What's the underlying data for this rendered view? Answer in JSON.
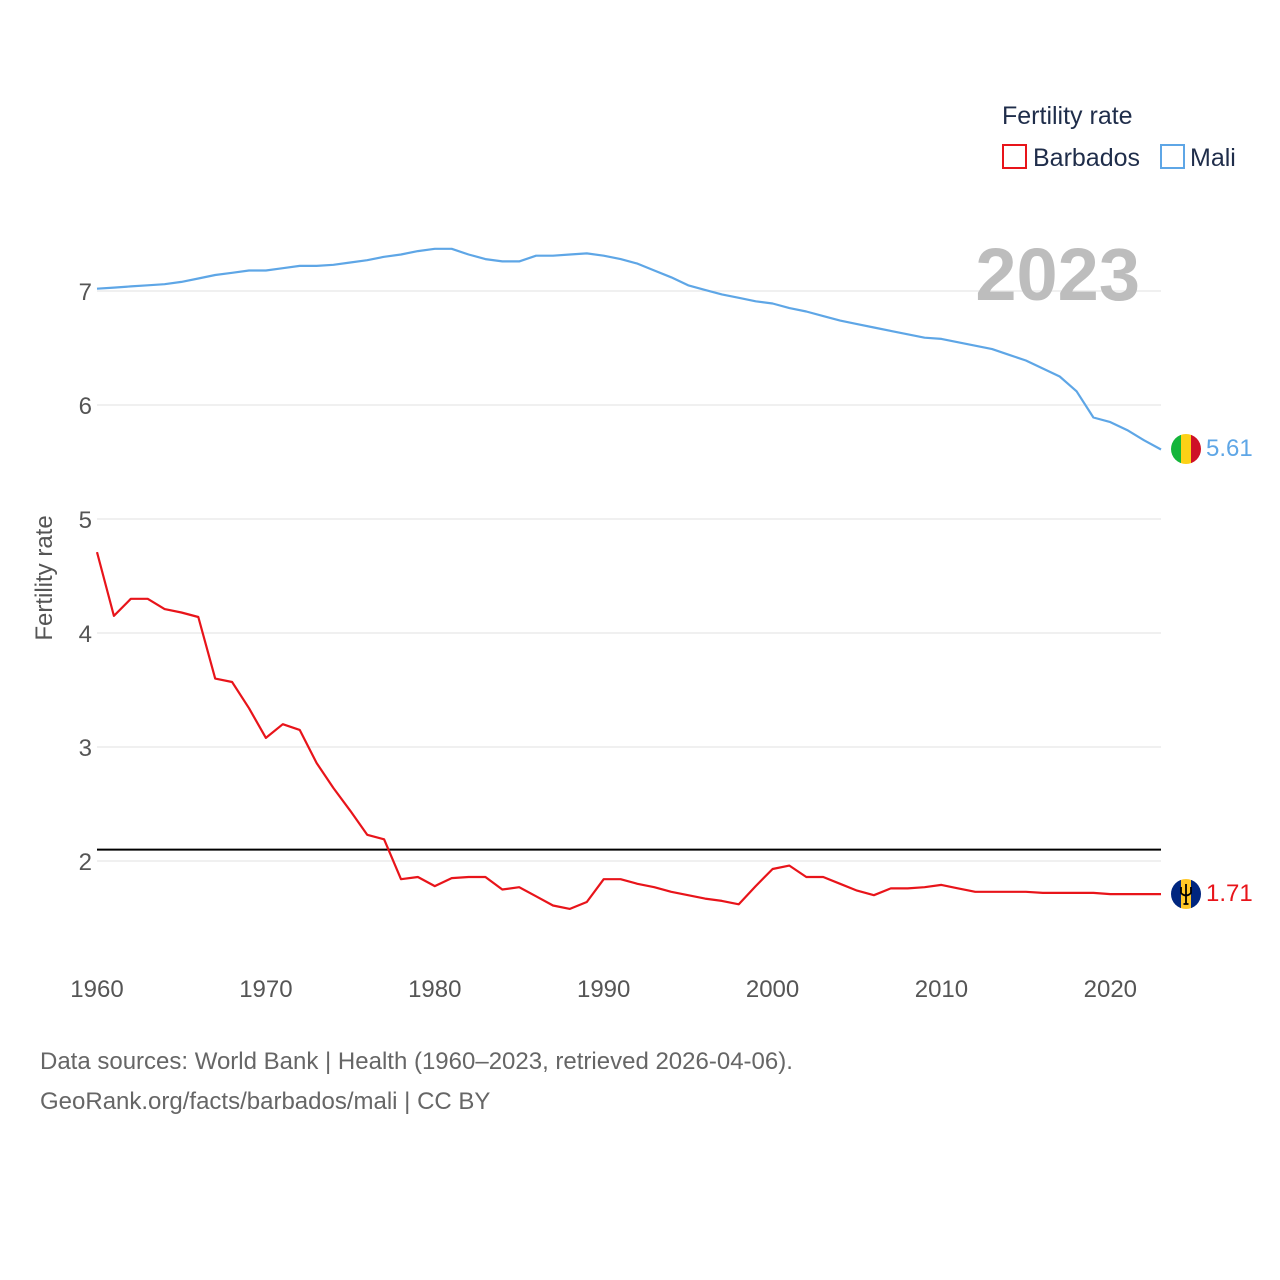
{
  "chart_data": {
    "type": "line",
    "title": "Fertility rate",
    "ylabel": "Fertility rate",
    "xlabel": "",
    "year_label": "2023",
    "xlim": [
      1960,
      2023
    ],
    "ylim": [
      1.2,
      7.6
    ],
    "x_ticks": [
      "1960",
      "1970",
      "1980",
      "1990",
      "2000",
      "2010",
      "2020"
    ],
    "y_ticks": [
      "2",
      "3",
      "4",
      "5",
      "6",
      "7"
    ],
    "reference_line": 2.1,
    "x": [
      1960,
      1961,
      1962,
      1963,
      1964,
      1965,
      1966,
      1967,
      1968,
      1969,
      1970,
      1971,
      1972,
      1973,
      1974,
      1975,
      1976,
      1977,
      1978,
      1979,
      1980,
      1981,
      1982,
      1983,
      1984,
      1985,
      1986,
      1987,
      1988,
      1989,
      1990,
      1991,
      1992,
      1993,
      1994,
      1995,
      1996,
      1997,
      1998,
      1999,
      2000,
      2001,
      2002,
      2003,
      2004,
      2005,
      2006,
      2007,
      2008,
      2009,
      2010,
      2011,
      2012,
      2013,
      2014,
      2015,
      2016,
      2017,
      2018,
      2019,
      2020,
      2021,
      2022,
      2023
    ],
    "series": [
      {
        "name": "Barbados",
        "color": "#e8141a",
        "end_label": "1.71",
        "flag": "barbados-flag-icon",
        "values": [
          4.71,
          4.15,
          4.3,
          4.3,
          4.21,
          4.18,
          4.14,
          3.6,
          3.57,
          3.34,
          3.08,
          3.2,
          3.15,
          2.86,
          2.64,
          2.44,
          2.23,
          2.19,
          1.84,
          1.86,
          1.78,
          1.85,
          1.86,
          1.86,
          1.75,
          1.77,
          1.69,
          1.61,
          1.58,
          1.64,
          1.84,
          1.84,
          1.8,
          1.77,
          1.73,
          1.7,
          1.67,
          1.65,
          1.62,
          1.78,
          1.93,
          1.96,
          1.86,
          1.86,
          1.8,
          1.74,
          1.7,
          1.76,
          1.76,
          1.77,
          1.79,
          1.76,
          1.73,
          1.73,
          1.73,
          1.73,
          1.72,
          1.72,
          1.72,
          1.72,
          1.71,
          1.71,
          1.71,
          1.71
        ]
      },
      {
        "name": "Mali",
        "color": "#5ea6e6",
        "end_label": "5.61",
        "flag": "mali-flag-icon",
        "values": [
          7.02,
          7.03,
          7.04,
          7.05,
          7.06,
          7.08,
          7.11,
          7.14,
          7.16,
          7.18,
          7.18,
          7.2,
          7.22,
          7.22,
          7.23,
          7.25,
          7.27,
          7.3,
          7.32,
          7.35,
          7.37,
          7.37,
          7.32,
          7.28,
          7.26,
          7.26,
          7.31,
          7.31,
          7.32,
          7.33,
          7.31,
          7.28,
          7.24,
          7.18,
          7.12,
          7.05,
          7.01,
          6.97,
          6.94,
          6.91,
          6.89,
          6.85,
          6.82,
          6.78,
          6.74,
          6.71,
          6.68,
          6.65,
          6.62,
          6.59,
          6.58,
          6.55,
          6.52,
          6.49,
          6.44,
          6.39,
          6.32,
          6.25,
          6.12,
          5.89,
          5.85,
          5.78,
          5.69,
          5.61
        ]
      }
    ],
    "legend": {
      "title": "Fertility rate",
      "position": "top-right"
    }
  },
  "source": {
    "line1": "Data sources: World Bank | Health (1960–2023, retrieved 2026-04-06).",
    "line2": "GeoRank.org/facts/barbados/mali | CC BY"
  }
}
